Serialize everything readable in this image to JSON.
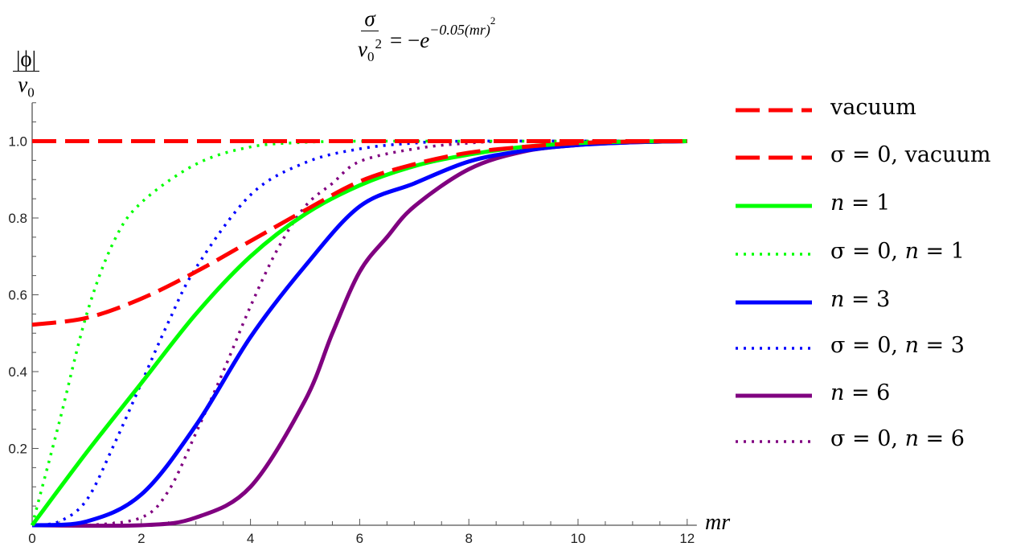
{
  "chart_data": {
    "type": "line",
    "title": {
      "lhs_num": "σ",
      "lhs_den": "v",
      "lhs_den_sub": "0",
      "lhs_den_sup": "2",
      "rhs": "= −",
      "rhs_base": "e",
      "rhs_exp": "−0.05(mr)",
      "rhs_exp_sup": "2"
    },
    "ylabel": {
      "num": "|ϕ|",
      "den": "v",
      "den_sub": "0"
    },
    "xlabel": "mr",
    "xlim": [
      0,
      12
    ],
    "ylim": [
      0,
      1.1
    ],
    "xticks": [
      0,
      2,
      4,
      6,
      8,
      10,
      12
    ],
    "yticks": [
      0.2,
      0.4,
      0.6,
      0.8,
      1.0
    ],
    "ytick_labels": [
      "0.2",
      "0.4",
      "0.6",
      "0.8",
      "1.0"
    ],
    "xtick_labels": [
      "0",
      "2",
      "4",
      "6",
      "8",
      "10",
      "12"
    ],
    "grid": false,
    "legend_placement": "right",
    "series": [
      {
        "name": "vacuum",
        "color": "#ff0000",
        "style": "dashed",
        "x": [
          0,
          1,
          2,
          3,
          4,
          5,
          6,
          7,
          8,
          9,
          10,
          11,
          12
        ],
        "y": [
          0.522,
          0.54,
          0.59,
          0.66,
          0.74,
          0.82,
          0.895,
          0.94,
          0.97,
          0.985,
          0.995,
          0.999,
          1.0
        ]
      },
      {
        "name": "σ = 0, vacuum",
        "color": "#ff0000",
        "style": "dashed",
        "x": [
          0,
          12
        ],
        "y": [
          1.0,
          1.0
        ]
      },
      {
        "name": "n = 1",
        "color": "#00ff00",
        "style": "solid",
        "x": [
          0,
          1,
          2,
          3,
          4,
          5,
          6,
          7,
          8,
          9,
          10,
          11,
          12
        ],
        "y": [
          0,
          0.19,
          0.37,
          0.55,
          0.7,
          0.81,
          0.885,
          0.935,
          0.965,
          0.985,
          0.995,
          0.999,
          1.0
        ]
      },
      {
        "name": "σ = 0, n = 1",
        "color": "#00ff00",
        "style": "dotted",
        "x": [
          0,
          0.5,
          1,
          1.5,
          2,
          3,
          4,
          5,
          6,
          7
        ],
        "y": [
          0,
          0.27,
          0.55,
          0.74,
          0.84,
          0.94,
          0.985,
          0.997,
          1.0,
          1.0
        ]
      },
      {
        "name": "n = 3",
        "color": "#0000ff",
        "style": "solid",
        "x": [
          0,
          1,
          2,
          3,
          4,
          5,
          6,
          7,
          8,
          9,
          10,
          11,
          12
        ],
        "y": [
          0,
          0.01,
          0.08,
          0.26,
          0.49,
          0.675,
          0.83,
          0.89,
          0.947,
          0.975,
          0.99,
          0.997,
          1.0
        ]
      },
      {
        "name": "σ = 0, n = 3",
        "color": "#0000ff",
        "style": "dotted",
        "x": [
          0,
          0.5,
          1,
          1.5,
          2,
          2.5,
          3,
          4,
          5,
          6,
          7,
          8
        ],
        "y": [
          0,
          0.01,
          0.066,
          0.21,
          0.37,
          0.53,
          0.67,
          0.86,
          0.944,
          0.98,
          0.995,
          1.0
        ]
      },
      {
        "name": "n = 6",
        "color": "#800080",
        "style": "solid",
        "x": [
          0,
          2,
          3,
          4,
          5,
          5.5,
          6,
          6.5,
          7,
          8,
          9,
          10,
          11,
          12
        ],
        "y": [
          0,
          0.0,
          0.02,
          0.1,
          0.325,
          0.5,
          0.66,
          0.75,
          0.83,
          0.927,
          0.973,
          0.99,
          0.997,
          1.0
        ]
      },
      {
        "name": "σ = 0, n = 6",
        "color": "#800080",
        "style": "dotted",
        "x": [
          0,
          1,
          2,
          2.5,
          3,
          3.5,
          4,
          4.5,
          5,
          5.5,
          6,
          7,
          8,
          9
        ],
        "y": [
          0,
          0,
          0.02,
          0.09,
          0.24,
          0.4,
          0.57,
          0.72,
          0.83,
          0.89,
          0.947,
          0.98,
          0.995,
          1.0
        ]
      }
    ]
  },
  "legend": [
    {
      "pre": "",
      "text": "vacuum"
    },
    {
      "pre": "σ = 0,",
      "text": " vacuum"
    },
    {
      "pre": "",
      "text": "n = 1"
    },
    {
      "pre": "σ = 0,",
      "text": " n = 1"
    },
    {
      "pre": "",
      "text": "n = 3"
    },
    {
      "pre": "σ = 0,",
      "text": " n = 3"
    },
    {
      "pre": "",
      "text": "n = 6"
    },
    {
      "pre": "σ = 0,",
      "text": " n = 6"
    }
  ]
}
